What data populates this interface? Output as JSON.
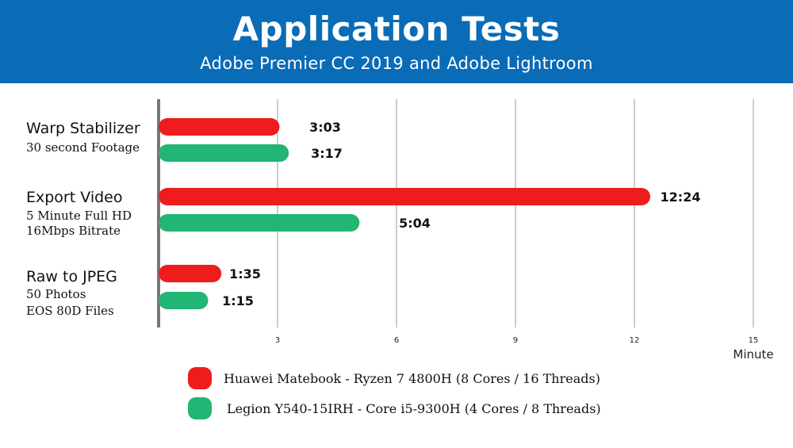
{
  "header": {
    "title": "Application Tests",
    "subtitle": "Adobe Premier CC 2019 and Adobe Lightroom"
  },
  "chart_data": {
    "type": "bar",
    "orientation": "horizontal",
    "xlabel": "Minute",
    "xlim": [
      0,
      15
    ],
    "xticks": [
      3,
      6,
      9,
      12,
      15
    ],
    "grid": true,
    "legend_position": "bottom",
    "categories": [
      {
        "name": "Warp Stabilizer",
        "sub": [
          "30 second Footage"
        ]
      },
      {
        "name": "Export Video",
        "sub": [
          "5 Minute Full HD",
          "16Mbps Bitrate"
        ]
      },
      {
        "name": "Raw to JPEG",
        "sub": [
          "50 Photos",
          "EOS 80D Files"
        ]
      }
    ],
    "series": [
      {
        "name": "Huawei Matebook  -  Ryzen 7 4800H (8 Cores / 16 Threads)",
        "color": "#ee1c1c",
        "values": [
          3.05,
          12.4,
          1.583
        ],
        "labels": [
          "3:03",
          "12:24",
          "1:35"
        ]
      },
      {
        "name": "Legion Y540-15IRH - Core i5-9300H (4 Cores / 8 Threads)",
        "color": "#22b573",
        "values": [
          3.283,
          5.067,
          1.25
        ],
        "labels": [
          "3:17",
          "5:04",
          "1:15"
        ]
      }
    ]
  }
}
